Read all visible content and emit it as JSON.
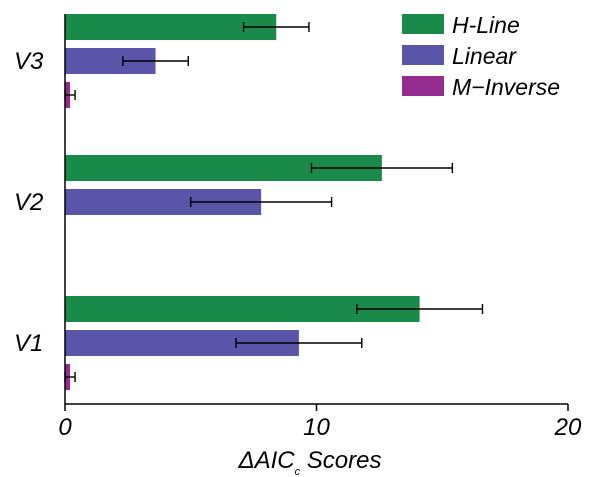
{
  "chart_data": {
    "type": "bar",
    "orientation": "horizontal",
    "categories": [
      "V3",
      "V2",
      "V1"
    ],
    "series": [
      {
        "name": "H-Line",
        "color": "#1a8a4a",
        "values": [
          8.4,
          12.6,
          14.1
        ],
        "errors": [
          1.3,
          2.8,
          2.5
        ]
      },
      {
        "name": "Linear",
        "color": "#5a55a8",
        "values": [
          3.6,
          7.8,
          9.3
        ],
        "errors": [
          1.3,
          2.8,
          2.5
        ]
      },
      {
        "name": "M−Inverse",
        "color": "#942b8e",
        "values": [
          0.2,
          0.0,
          0.2
        ],
        "errors": [
          0.2,
          0.0,
          0.2
        ]
      }
    ],
    "xlim": [
      0,
      20
    ],
    "xticks": [
      "0",
      "10",
      "20"
    ],
    "xlabel": "ΔAIC",
    "xlabel_subscript": "c",
    "xlabel_suffix": " Scores",
    "ylabel": "",
    "grid": false,
    "legend_position": "top-right"
  }
}
